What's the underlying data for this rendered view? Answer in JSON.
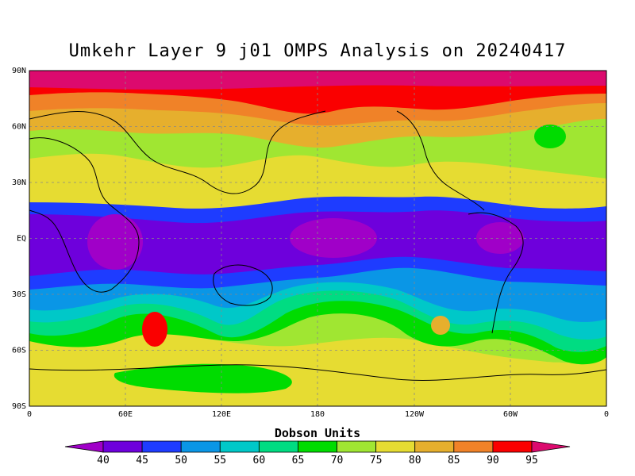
{
  "title": "Umkehr Layer 9 j01 OMPS Analysis on 20240417",
  "colorbar": {
    "title": "Dobson Units",
    "levels": [
      40,
      45,
      50,
      55,
      60,
      65,
      70,
      75,
      80,
      85,
      90,
      95
    ],
    "colors": [
      "#a000c8",
      "#6e00dc",
      "#1e3cff",
      "#0a96e6",
      "#00c8c8",
      "#00dc82",
      "#00dc00",
      "#a0e632",
      "#e6dc32",
      "#e6af2d",
      "#f08228",
      "#fa0000",
      "#dc0a6e"
    ],
    "level_labels": [
      "40",
      "45",
      "50",
      "55",
      "60",
      "65",
      "70",
      "75",
      "80",
      "85",
      "90",
      "95"
    ]
  },
  "axes": {
    "lat_labels": [
      "90N",
      "60N",
      "30N",
      "EQ",
      "30S",
      "60S",
      "90S"
    ],
    "lon_labels": [
      "0",
      "60E",
      "120E",
      "180",
      "120W",
      "60W",
      "0"
    ]
  }
}
